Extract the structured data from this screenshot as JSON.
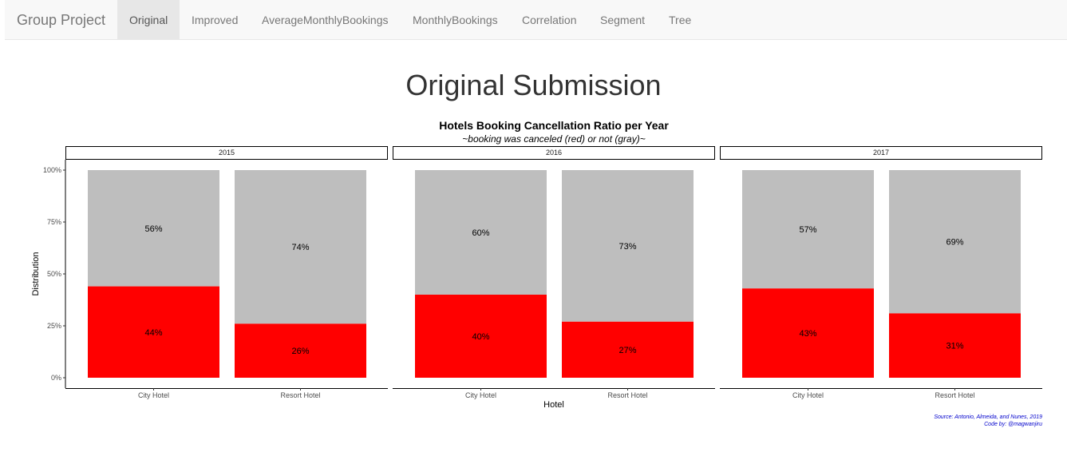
{
  "nav": {
    "brand": "Group Project",
    "tabs": [
      {
        "label": "Original",
        "active": true
      },
      {
        "label": "Improved",
        "active": false
      },
      {
        "label": "AverageMonthlyBookings",
        "active": false
      },
      {
        "label": "MonthlyBookings",
        "active": false
      },
      {
        "label": "Correlation",
        "active": false
      },
      {
        "label": "Segment",
        "active": false
      },
      {
        "label": "Tree",
        "active": false
      }
    ]
  },
  "page": {
    "title": "Original Submission"
  },
  "chart_data": {
    "type": "bar",
    "stacked": true,
    "title": "Hotels Booking Cancellation Ratio per Year",
    "subtitle": "~booking was canceled (red) or not (gray)~",
    "xlabel": "Hotel",
    "ylabel": "Distribution",
    "ylim": [
      0,
      100
    ],
    "yticks": [
      "0%",
      "25%",
      "50%",
      "75%",
      "100%"
    ],
    "categories": [
      "City Hotel",
      "Resort Hotel"
    ],
    "facets": [
      "2015",
      "2016",
      "2017"
    ],
    "series": [
      {
        "key": "canceled",
        "color": "#ff0000",
        "values": {
          "2015": [
            44,
            26
          ],
          "2016": [
            40,
            27
          ],
          "2017": [
            43,
            31
          ]
        },
        "labels": {
          "2015": [
            "44%",
            "26%"
          ],
          "2016": [
            "40%",
            "27%"
          ],
          "2017": [
            "43%",
            "31%"
          ]
        }
      },
      {
        "key": "not_canceled",
        "color": "#bebebe",
        "values": {
          "2015": [
            56,
            74
          ],
          "2016": [
            60,
            73
          ],
          "2017": [
            57,
            69
          ]
        },
        "labels": {
          "2015": [
            "56%",
            "74%"
          ],
          "2016": [
            "60%",
            "73%"
          ],
          "2017": [
            "57%",
            "69%"
          ]
        }
      }
    ],
    "caption": [
      "Source: Antonio, Almeida, and Nunes, 2019",
      "Code by: @magwanjiru"
    ],
    "caption_color": "#0000cc"
  }
}
